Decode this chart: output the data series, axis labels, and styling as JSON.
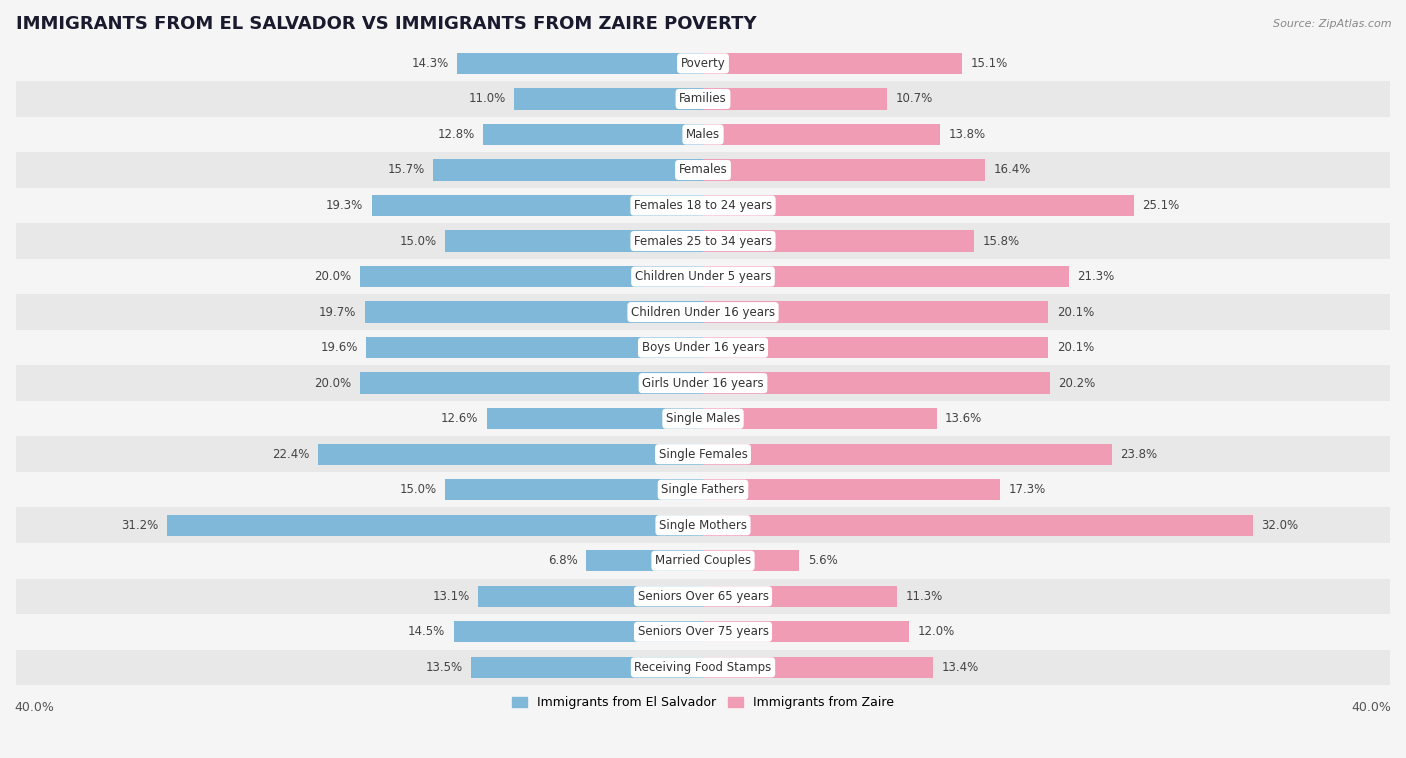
{
  "title": "IMMIGRANTS FROM EL SALVADOR VS IMMIGRANTS FROM ZAIRE POVERTY",
  "source": "Source: ZipAtlas.com",
  "categories": [
    "Poverty",
    "Families",
    "Males",
    "Females",
    "Females 18 to 24 years",
    "Females 25 to 34 years",
    "Children Under 5 years",
    "Children Under 16 years",
    "Boys Under 16 years",
    "Girls Under 16 years",
    "Single Males",
    "Single Females",
    "Single Fathers",
    "Single Mothers",
    "Married Couples",
    "Seniors Over 65 years",
    "Seniors Over 75 years",
    "Receiving Food Stamps"
  ],
  "el_salvador": [
    14.3,
    11.0,
    12.8,
    15.7,
    19.3,
    15.0,
    20.0,
    19.7,
    19.6,
    20.0,
    12.6,
    22.4,
    15.0,
    31.2,
    6.8,
    13.1,
    14.5,
    13.5
  ],
  "zaire": [
    15.1,
    10.7,
    13.8,
    16.4,
    25.1,
    15.8,
    21.3,
    20.1,
    20.1,
    20.2,
    13.6,
    23.8,
    17.3,
    32.0,
    5.6,
    11.3,
    12.0,
    13.4
  ],
  "color_salvador": "#7fb8d8",
  "color_zaire": "#f09cb5",
  "background_color": "#f5f5f5",
  "row_color_odd": "#e8e8e8",
  "row_color_even": "#f5f5f5",
  "xlim": 40.0,
  "legend_label_salvador": "Immigrants from El Salvador",
  "legend_label_zaire": "Immigrants from Zaire",
  "title_fontsize": 13,
  "label_fontsize": 8.5,
  "value_fontsize": 8.5,
  "axis_label_fontsize": 9,
  "bar_height": 0.6
}
